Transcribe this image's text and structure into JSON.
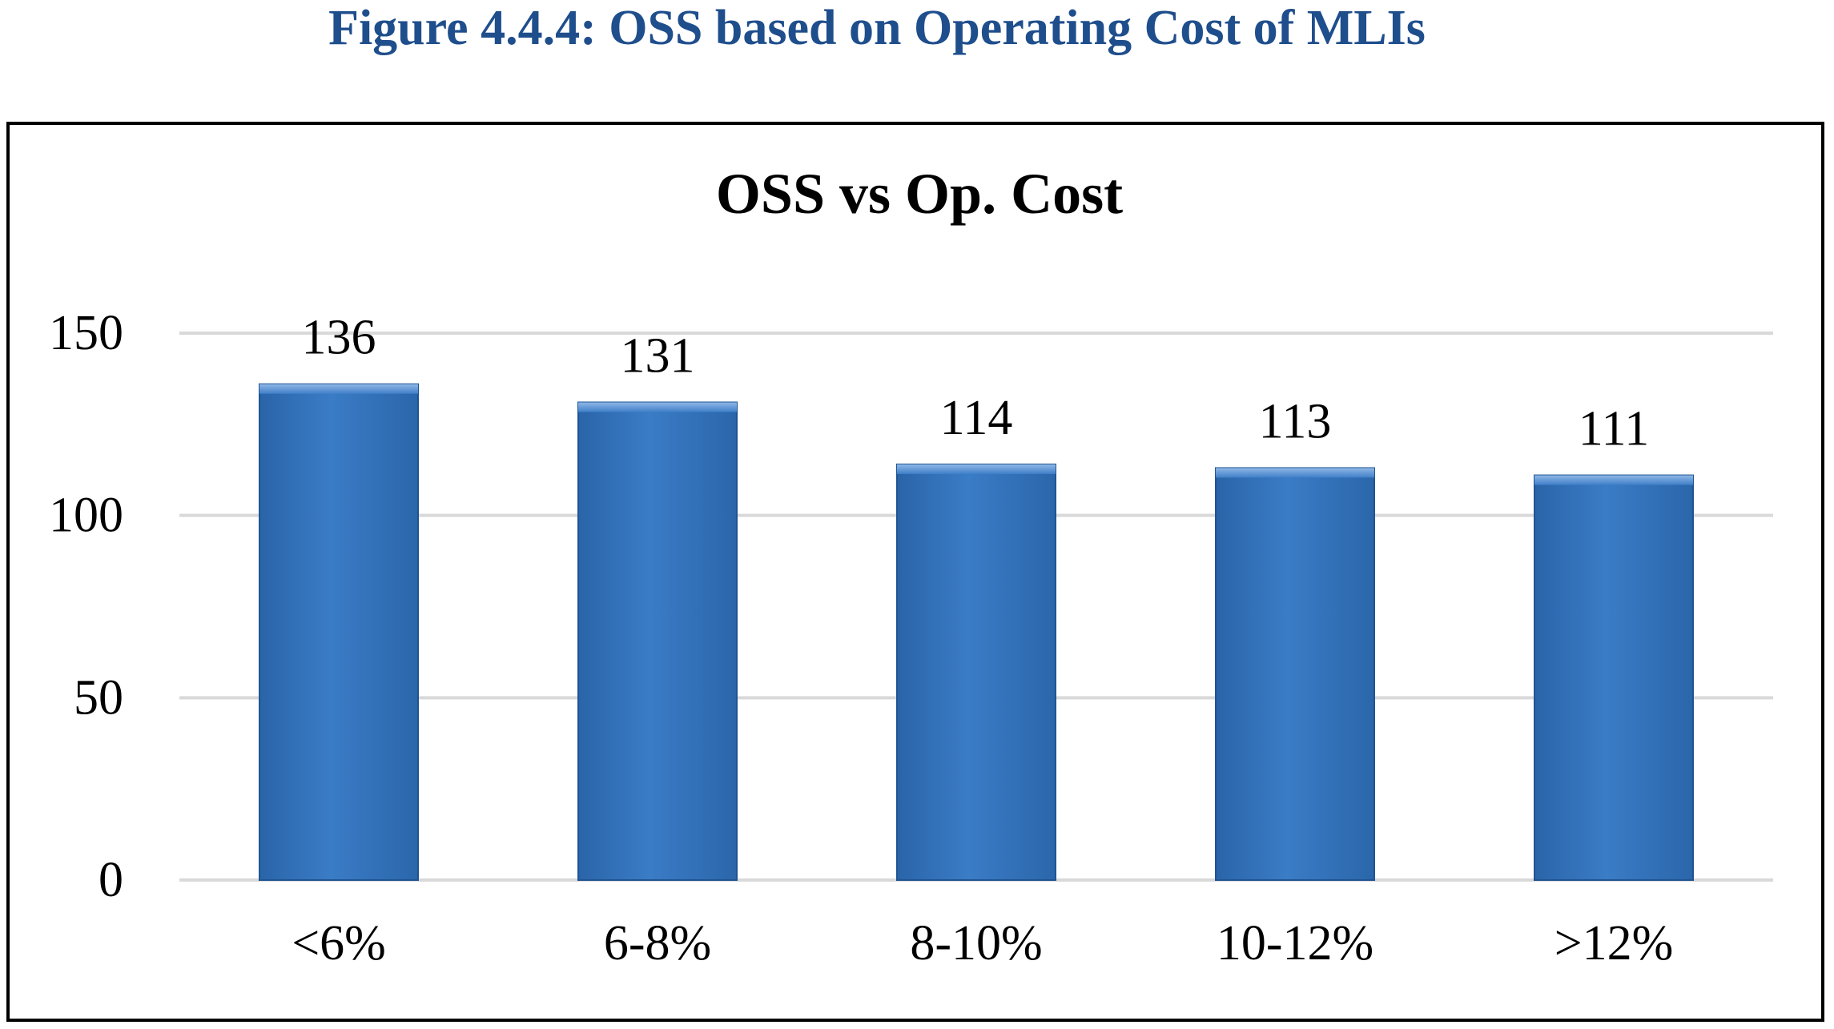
{
  "figure": {
    "caption": "Figure 4.4.4: OSS based on Operating Cost of MLIs"
  },
  "chart_data": {
    "type": "bar",
    "title": "OSS vs Op. Cost",
    "xlabel": "",
    "ylabel": "",
    "categories": [
      "<6%",
      "6-8%",
      "8-10%",
      "10-12%",
      ">12%"
    ],
    "values": [
      136,
      131,
      114,
      113,
      111
    ],
    "data_labels": [
      "136",
      "131",
      "114",
      "113",
      "111"
    ],
    "y_ticks": [
      0,
      50,
      100,
      150
    ],
    "y_tick_labels": [
      "0",
      "50",
      "100",
      "150"
    ],
    "ylim": [
      0,
      150
    ],
    "grid": true,
    "legend": "none",
    "bar_color": "#2e6db4",
    "bar_color_light": "#5a93d3",
    "grid_color": "#d9d9d9"
  }
}
